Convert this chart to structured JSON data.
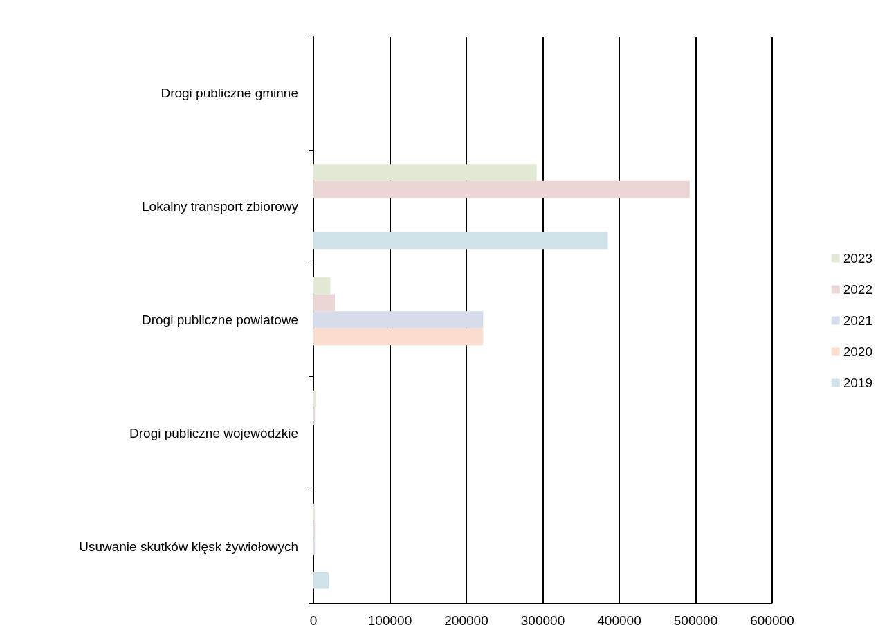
{
  "chart_data": {
    "type": "bar",
    "orientation": "horizontal",
    "categories": [
      "Drogi publiczne gminne",
      "Lokalny transport zbiorowy",
      "Drogi publiczne powiatowe",
      "Drogi publiczne wojewódzkie",
      "Usuwanie skutków klęsk żywiołowych"
    ],
    "series": [
      {
        "name": "2023",
        "color": "#e2ead6",
        "values": [
          0,
          292000,
          22000,
          3000,
          2000
        ]
      },
      {
        "name": "2022",
        "color": "#ecd5d5",
        "values": [
          0,
          492000,
          28000,
          2000,
          2000
        ]
      },
      {
        "name": "2021",
        "color": "#d6dce9",
        "values": [
          0,
          0,
          222000,
          0,
          2000
        ]
      },
      {
        "name": "2020",
        "color": "#fbddd0",
        "values": [
          0,
          0,
          222000,
          0,
          0
        ]
      },
      {
        "name": "2019",
        "color": "#cfe2e8",
        "values": [
          0,
          385000,
          0,
          0,
          20000
        ]
      }
    ],
    "xlim": [
      0,
      600000
    ],
    "xticks": [
      0,
      100000,
      200000,
      300000,
      400000,
      500000,
      600000
    ],
    "grid": "x",
    "legend": "right"
  }
}
